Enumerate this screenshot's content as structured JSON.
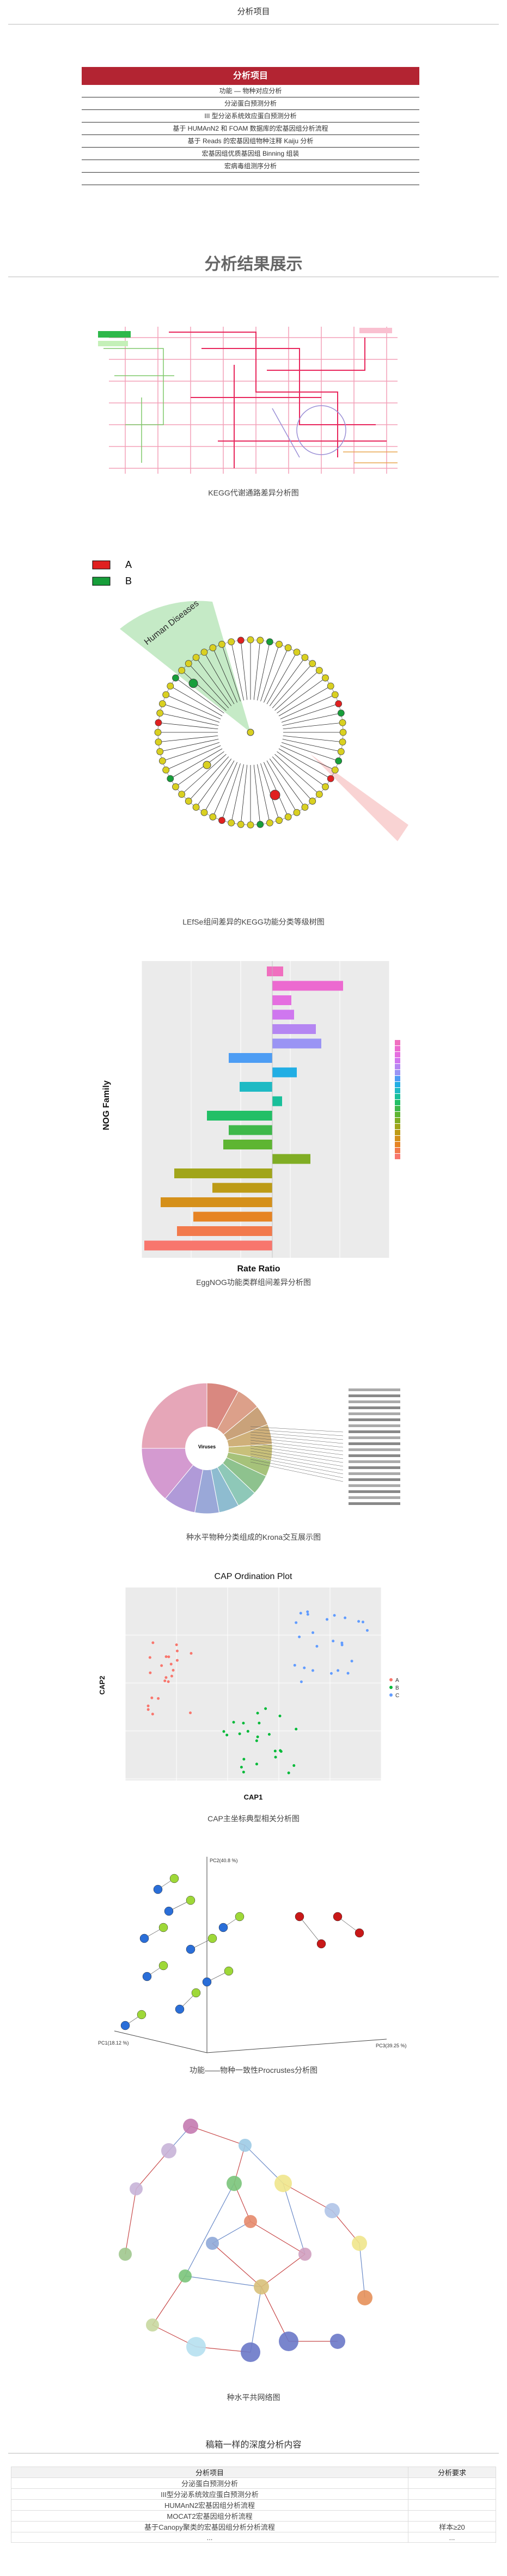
{
  "header": {
    "title": "分析项目"
  },
  "projects": {
    "header": "分析项目",
    "rows": [
      "功能 — 物种对应分析",
      "分泌蛋白预测分析",
      "III 型分泌系统效应蛋白预测分析",
      "基于 HUMAnN2 和 FOAM 数据库的宏基因组分析流程",
      "基于 Reads 的宏基因组物种注释 Kaiju 分析",
      "宏基因组优质基因组 Binning 组装",
      "宏病毒组测序分析",
      ""
    ]
  },
  "results": {
    "title": "分析结果展示"
  },
  "captions": {
    "kegg": "KEGG代谢通路差异分析图",
    "lefse": "LEfSe组间差异的KEGG功能分类等级树图",
    "eggnog": "EggNOG功能类群组间差异分析图",
    "krona": "种水平物种分类组成的Krona交互展示图",
    "cap": "CAP主坐标典型相关分析图",
    "procrustes": "功能——物种一致性Procrustes分析图",
    "network": "种水平共网络图"
  },
  "lefse_legend": [
    "A",
    "B"
  ],
  "lefse_label": "Human Diseases",
  "eggnog_chart": {
    "ylabel": "NOG Family",
    "xlabel": "Rate Ratio"
  },
  "cap_chart": {
    "title": "CAP Ordination Plot",
    "xlabel": "CAP1",
    "ylabel": "CAP2",
    "legend": [
      "A",
      "B",
      "C"
    ]
  },
  "krona_center": "Viruses",
  "procrustes_axes": [
    "PC1(18.12 %)",
    "PC2(40.8 %)",
    "PC3(39.25 %)"
  ],
  "bottom": {
    "heading": "稿箱一样的深度分析内容",
    "col_project": "分析项目",
    "col_req": "分析要求",
    "rows": [
      {
        "name": "分泌蛋白预测分析",
        "req": ""
      },
      {
        "name": "III型分泌系统效应蛋白预测分析",
        "req": ""
      },
      {
        "name": "HUMAnN2宏基因组分析流程",
        "req": ""
      },
      {
        "name": "MOCAT2宏基因组分析流程",
        "req": ""
      },
      {
        "name": "基于Canopy聚类的宏基因组分析分析流程",
        "req": "样本≥20"
      },
      {
        "name": "...",
        "req": "..."
      }
    ]
  }
}
